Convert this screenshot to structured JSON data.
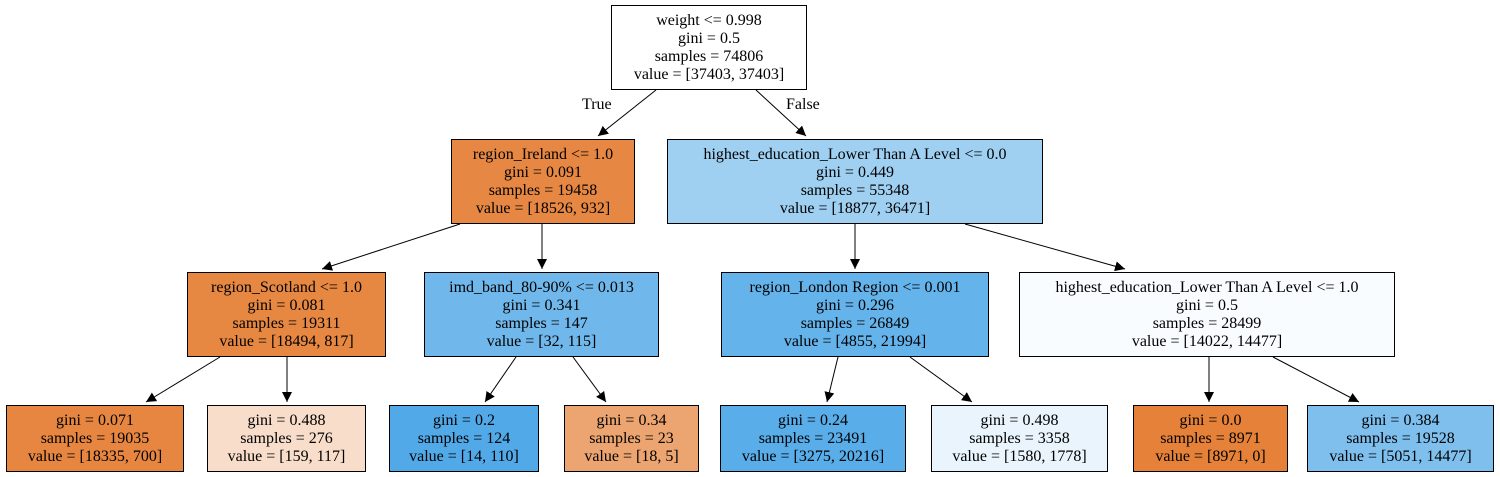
{
  "edge_labels": {
    "true": "True",
    "false": "False"
  },
  "nodes": [
    {
      "id": "n0",
      "lines": [
        "weight <= 0.998",
        "gini = 0.5",
        "samples = 74806",
        "value = [37403, 37403]"
      ],
      "fill": "#ffffff"
    },
    {
      "id": "n1",
      "lines": [
        "region_Ireland <= 1.0",
        "gini = 0.091",
        "samples = 19458",
        "value = [18526, 932]"
      ],
      "fill": "#e68743"
    },
    {
      "id": "n2",
      "lines": [
        "highest_education_Lower Than A Level <= 0.0",
        "gini = 0.449",
        "samples = 55348",
        "value = [18877, 36471]"
      ],
      "fill": "#9fd0f2"
    },
    {
      "id": "n3",
      "lines": [
        "region_Scotland <= 1.0",
        "gini = 0.081",
        "samples = 19311",
        "value = [18494, 817]"
      ],
      "fill": "#e68742"
    },
    {
      "id": "n4",
      "lines": [
        "imd_band_80-90% <= 0.013",
        "gini = 0.341",
        "samples = 147",
        "value = [32, 115]"
      ],
      "fill": "#70b8ec"
    },
    {
      "id": "n5",
      "lines": [
        "region_London Region <= 0.001",
        "gini = 0.296",
        "samples = 26849",
        "value = [4855, 21994]"
      ],
      "fill": "#65b3eb"
    },
    {
      "id": "n6",
      "lines": [
        "highest_education_Lower Than A Level <= 1.0",
        "gini = 0.5",
        "samples = 28499",
        "value = [14022, 14477]"
      ],
      "fill": "#f9fcfe"
    },
    {
      "id": "n7",
      "lines": [
        "gini = 0.071",
        "samples = 19035",
        "value = [18335, 700]"
      ],
      "fill": "#e68641"
    },
    {
      "id": "n8",
      "lines": [
        "gini = 0.488",
        "samples = 276",
        "value = [159, 117]"
      ],
      "fill": "#f8ddca"
    },
    {
      "id": "n9",
      "lines": [
        "gini = 0.2",
        "samples = 124",
        "value = [14, 110]"
      ],
      "fill": "#52a9e8"
    },
    {
      "id": "n10",
      "lines": [
        "gini = 0.34",
        "samples = 23",
        "value = [18, 5]"
      ],
      "fill": "#eca470"
    },
    {
      "id": "n11",
      "lines": [
        "gini = 0.24",
        "samples = 23491",
        "value = [3275, 20216]"
      ],
      "fill": "#59ade9"
    },
    {
      "id": "n12",
      "lines": [
        "gini = 0.498",
        "samples = 3358",
        "value = [1580, 1778]"
      ],
      "fill": "#e9f4fc"
    },
    {
      "id": "n13",
      "lines": [
        "gini = 0.0",
        "samples = 8971",
        "value = [8971, 0]"
      ],
      "fill": "#e58139"
    },
    {
      "id": "n14",
      "lines": [
        "gini = 0.384",
        "samples = 19528",
        "value = [5051, 14477]"
      ],
      "fill": "#7ebfee"
    }
  ],
  "edges": [
    [
      "n0",
      "n1"
    ],
    [
      "n0",
      "n2"
    ],
    [
      "n1",
      "n3"
    ],
    [
      "n1",
      "n4"
    ],
    [
      "n2",
      "n5"
    ],
    [
      "n2",
      "n6"
    ],
    [
      "n3",
      "n7"
    ],
    [
      "n3",
      "n8"
    ],
    [
      "n4",
      "n9"
    ],
    [
      "n4",
      "n10"
    ],
    [
      "n5",
      "n11"
    ],
    [
      "n5",
      "n12"
    ],
    [
      "n6",
      "n13"
    ],
    [
      "n6",
      "n14"
    ]
  ]
}
